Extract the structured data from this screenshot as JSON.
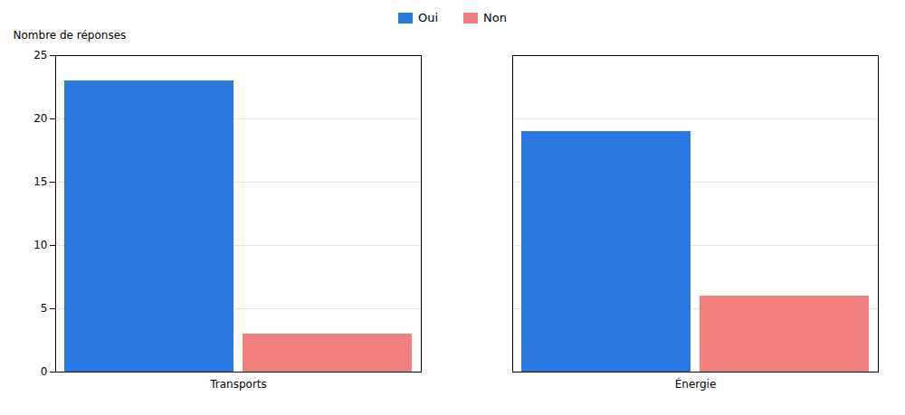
{
  "chart_data": {
    "type": "bar",
    "ylabel": "Nombre de réponses",
    "categories": [
      "Transports",
      "Énergie"
    ],
    "series": [
      {
        "name": "Oui",
        "color": "#2878e0",
        "values": [
          23,
          19
        ]
      },
      {
        "name": "Non",
        "color": "#f08080",
        "values": [
          3,
          6
        ]
      }
    ],
    "ylim": [
      0,
      25
    ],
    "yticks": [
      0,
      5,
      10,
      15,
      20,
      25
    ],
    "grid": true,
    "legend": "top"
  }
}
